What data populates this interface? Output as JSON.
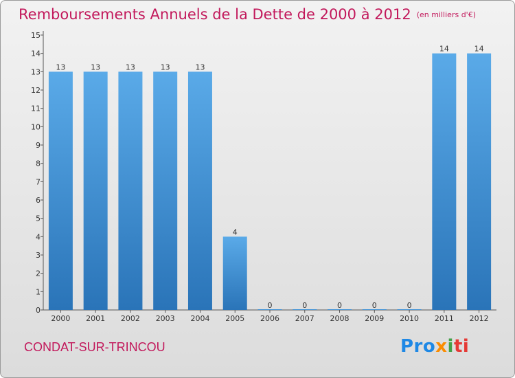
{
  "chart_data": {
    "type": "bar",
    "title": "Remboursements Annuels de la Dette de 2000 à 2012",
    "unit_note": "(en milliers d'€)",
    "categories": [
      "2000",
      "2001",
      "2002",
      "2003",
      "2004",
      "2005",
      "2006",
      "2007",
      "2008",
      "2009",
      "2010",
      "2011",
      "2012"
    ],
    "values": [
      13,
      13,
      13,
      13,
      13,
      4,
      0,
      0,
      0,
      0,
      0,
      14,
      14
    ],
    "value_labels": [
      "13",
      "13",
      "13",
      "13",
      "13",
      "4",
      "0",
      "0",
      "0",
      "0",
      "0",
      "14",
      "14"
    ],
    "ylim": [
      0,
      15
    ],
    "yticks": [
      0,
      1,
      2,
      3,
      4,
      5,
      6,
      7,
      8,
      9,
      10,
      11,
      12,
      13,
      14,
      15
    ],
    "grid": false,
    "bar_color": "#3a8fd6"
  },
  "footer": {
    "location": "CONDAT-SUR-TRINCOU",
    "logo": {
      "parts": [
        "Pro",
        "x",
        "i",
        "ti"
      ]
    }
  },
  "colors": {
    "title": "#c2185b",
    "logo_pro": "#1e88e5",
    "logo_x": "#fb8c00",
    "logo_i": "#43a047",
    "logo_ti": "#e53935"
  }
}
